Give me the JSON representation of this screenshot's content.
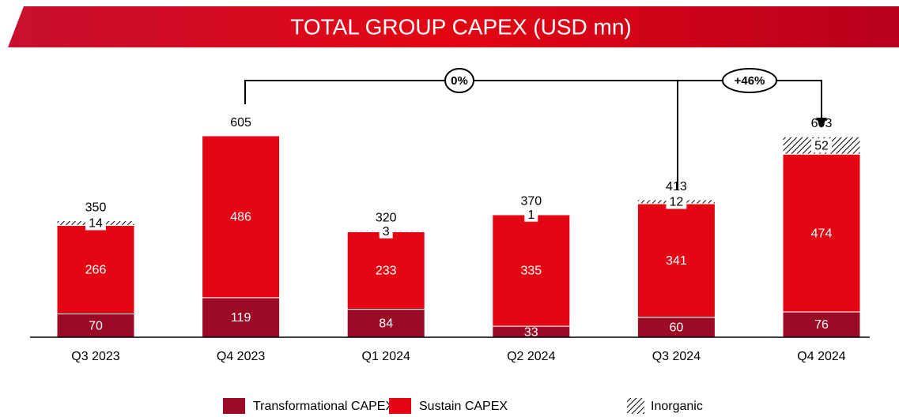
{
  "chart_data": {
    "type": "bar",
    "stacked": true,
    "title": "TOTAL GROUP CAPEX (USD mn)",
    "categories": [
      "Q3 2023",
      "Q4 2023",
      "Q1 2024",
      "Q2 2024",
      "Q3 2024",
      "Q4 2024"
    ],
    "series": [
      {
        "name": "Transformational CAPEX",
        "color": "#9b0b25",
        "values": [
          70,
          119,
          84,
          33,
          60,
          76
        ]
      },
      {
        "name": "Sustain CAPEX",
        "color": "#e30613",
        "values": [
          266,
          486,
          233,
          335,
          341,
          474
        ]
      },
      {
        "name": "Inorganic",
        "color": "#000000",
        "pattern": "hatch",
        "values": [
          14,
          null,
          3,
          1,
          12,
          52
        ]
      }
    ],
    "totals": [
      350,
      605,
      320,
      370,
      413,
      603
    ],
    "annotations": [
      "0%",
      "+46%"
    ]
  }
}
